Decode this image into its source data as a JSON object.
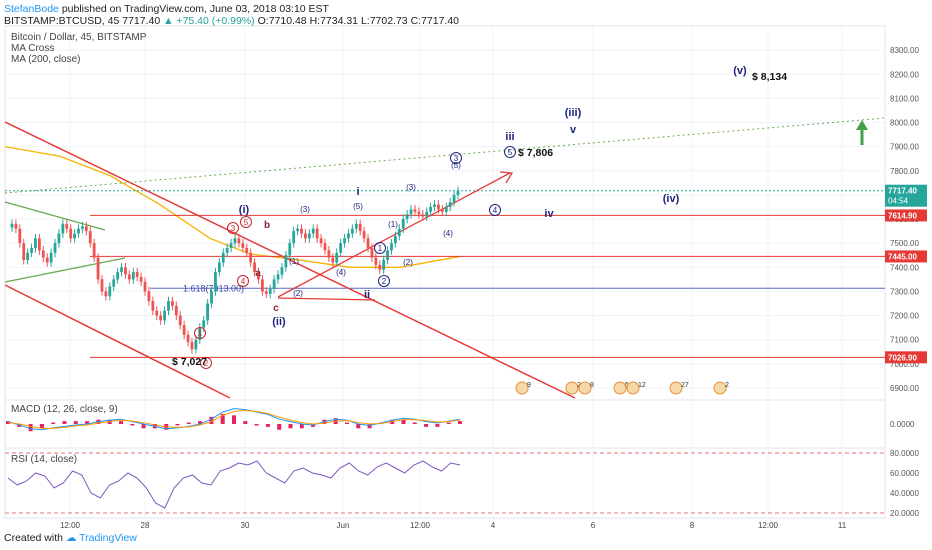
{
  "header": {
    "author": "StefanBode",
    "published_text": "published on TradingView.com, June 03, 2018 03:10 EST",
    "ticker": "BITSTAMP:BTCUSD, 45",
    "last": "7717.40",
    "change": "▲ +75.40 (+0.99%)",
    "ohlc": "O:7710.48 H:7734.31 L:7702.73 C:7717.40"
  },
  "legend": {
    "symbol": "Bitcoin / Dollar, 45, BITSTAMP",
    "ind1": "MA Cross",
    "ind2": "MA (200, close)"
  },
  "macd_label": "MACD (12, 26, close, 9)",
  "rsi_label": "RSI (14, close)",
  "footer": {
    "created_with": "Created with",
    "brand": "TradingView"
  },
  "colors": {
    "candle_up": "#26a69a",
    "candle_down": "#ef5350",
    "ma200": "#f4b400",
    "wave_label": "#1a237e",
    "red_line": "#e53935",
    "green_line": "#6aa84f",
    "price_tag": "#e53935",
    "last_tag": "#26a69a",
    "rsi": "#7e57c2",
    "macd_line": "#2196f3",
    "signal_line": "#ff9800",
    "hist": "#e91e63"
  },
  "chart_data": {
    "type": "candlestick",
    "title": "Bitcoin / Dollar, 45, BITSTAMP",
    "y_range": [
      6850,
      8400
    ],
    "y_ticks": [
      {
        "v": 6900,
        "t": "6900.00"
      },
      {
        "v": 7000,
        "t": "7000.00"
      },
      {
        "v": 7100,
        "t": "7100.00"
      },
      {
        "v": 7200,
        "t": "7200.00"
      },
      {
        "v": 7300,
        "t": "7300.00"
      },
      {
        "v": 7400,
        "t": "7400.00"
      },
      {
        "v": 7500,
        "t": "7500.00"
      },
      {
        "v": 7600,
        "t": "7600.00"
      },
      {
        "v": 7700,
        "t": "7700.00"
      },
      {
        "v": 7800,
        "t": "7800.00"
      },
      {
        "v": 7900,
        "t": "7900.00"
      },
      {
        "v": 8000,
        "t": "8000.00"
      },
      {
        "v": 8100,
        "t": "8100.00"
      },
      {
        "v": 8200,
        "t": "8200.00"
      },
      {
        "v": 8300,
        "t": "8300.00"
      }
    ],
    "x_labels": [
      "12:00",
      "28",
      "30",
      "Jun",
      "12:00",
      "4",
      "6",
      "8",
      "12:00",
      "11"
    ],
    "price_close": [
      7580,
      7560,
      7500,
      7430,
      7460,
      7480,
      7520,
      7470,
      7440,
      7420,
      7460,
      7500,
      7540,
      7580,
      7560,
      7520,
      7540,
      7560,
      7570,
      7550,
      7500,
      7440,
      7350,
      7300,
      7280,
      7320,
      7350,
      7380,
      7400,
      7370,
      7350,
      7380,
      7360,
      7340,
      7300,
      7260,
      7220,
      7200,
      7180,
      7220,
      7260,
      7240,
      7200,
      7160,
      7120,
      7090,
      7060,
      7100,
      7150,
      7180,
      7250,
      7300,
      7380,
      7420,
      7460,
      7480,
      7500,
      7520,
      7500,
      7480,
      7460,
      7420,
      7380,
      7350,
      7300,
      7290,
      7310,
      7350,
      7370,
      7400,
      7450,
      7500,
      7550,
      7560,
      7540,
      7520,
      7540,
      7560,
      7520,
      7500,
      7470,
      7440,
      7420,
      7460,
      7500,
      7520,
      7540,
      7560,
      7580,
      7550,
      7520,
      7480,
      7440,
      7410,
      7390,
      7430,
      7470,
      7500,
      7530,
      7560,
      7600,
      7620,
      7640,
      7630,
      7620,
      7610,
      7630,
      7650,
      7660,
      7640,
      7630,
      7650,
      7670,
      7700,
      7717
    ],
    "levels": [
      {
        "price": 7614.9,
        "label": "7614.90"
      },
      {
        "price": 7445.0,
        "label": "7445.00"
      },
      {
        "price": 7026.9,
        "label": "7026.90"
      }
    ],
    "last_price": {
      "price": 7717.4,
      "label": "7717.40",
      "countdown": "04:54"
    },
    "fib_label": "1.618(7313.00)",
    "price_annotations": [
      {
        "text": "$ 7,027",
        "price": 7026.9
      },
      {
        "text": "$ 7,806",
        "price": 7806
      },
      {
        "text": "$ 8,134",
        "price": 8134
      }
    ],
    "waves": [
      {
        "text": "(i)",
        "price": 7660,
        "style": "bold"
      },
      {
        "text": "(ii)",
        "price": 7210,
        "style": "bold"
      },
      {
        "text": "i",
        "price": 7700,
        "style": "bold"
      },
      {
        "text": "ii",
        "price": 7300,
        "style": "bold"
      },
      {
        "text": "iii",
        "price": 7875,
        "style": "bold"
      },
      {
        "text": "iv",
        "price": 7612,
        "style": "bold"
      },
      {
        "text": "(iii)",
        "price": 7960,
        "style": "bold"
      },
      {
        "text": "v",
        "price": 7880,
        "style": "bold"
      },
      {
        "text": "(iv)",
        "price": 7660,
        "style": "bold"
      },
      {
        "text": "(v)",
        "price": 8160,
        "style": "bold"
      },
      {
        "text": "a",
        "price": 7410,
        "style": "red"
      },
      {
        "text": "b",
        "price": 7560,
        "style": "red"
      },
      {
        "text": "c",
        "price": 7260,
        "style": "red"
      },
      {
        "text": "(1)",
        "price": 7410,
        "style": "small"
      },
      {
        "text": "(2)",
        "price": 7280,
        "style": "small"
      },
      {
        "text": "(3)",
        "price": 7630,
        "style": "small"
      },
      {
        "text": "(4)",
        "price": 7410,
        "style": "small"
      },
      {
        "text": "(5)",
        "price": 7640,
        "style": "small"
      },
      {
        "text": "(1)",
        "price": 7580,
        "style": "small"
      },
      {
        "text": "(2)",
        "price": 7440,
        "style": "small"
      },
      {
        "text": "(3)",
        "price": 7710,
        "style": "small"
      },
      {
        "text": "(4)",
        "price": 7540,
        "style": "small"
      },
      {
        "text": "(5)",
        "price": 7820,
        "style": "small"
      }
    ],
    "circled": [
      {
        "text": "3",
        "price": 7578
      },
      {
        "text": "5",
        "price": 7598
      },
      {
        "text": "4",
        "price": 7433
      },
      {
        "text": "1",
        "price": 7108
      },
      {
        "text": "2",
        "price": 7021
      },
      {
        "text": "1",
        "price": 7505
      },
      {
        "text": "2",
        "price": 7380
      },
      {
        "text": "3",
        "price": 7860
      },
      {
        "text": "4",
        "price": 7634
      },
      {
        "text": "5",
        "price": 7806
      }
    ],
    "event_counts": [
      "9",
      "2",
      "8",
      "5",
      "12",
      "27",
      "2"
    ],
    "macd": {
      "y_range": [
        -0.5,
        0.5
      ],
      "ticks": [
        {
          "v": 0,
          "t": "0.0000"
        }
      ],
      "macd_line": [
        0.05,
        -0.02,
        -0.1,
        -0.12,
        -0.08,
        -0.05,
        -0.02,
        0.0,
        0.05,
        0.08,
        0.1,
        0.05,
        0.0,
        -0.05,
        -0.1,
        -0.08,
        -0.05,
        0.0,
        0.1,
        0.25,
        0.32,
        0.3,
        0.25,
        0.2,
        0.1,
        0.05,
        0.0,
        -0.02,
        0.05,
        0.1,
        0.08,
        0.0,
        -0.03,
        0.02,
        0.08,
        0.12,
        0.1,
        0.05,
        0.02,
        0.06,
        0.1
      ],
      "signal": [
        0.03,
        0.0,
        -0.05,
        -0.09,
        -0.09,
        -0.07,
        -0.04,
        -0.02,
        0.02,
        0.05,
        0.08,
        0.06,
        0.03,
        -0.02,
        -0.06,
        -0.07,
        -0.06,
        -0.02,
        0.05,
        0.18,
        0.26,
        0.28,
        0.26,
        0.22,
        0.14,
        0.08,
        0.03,
        0.0,
        0.02,
        0.06,
        0.07,
        0.03,
        0.0,
        0.01,
        0.05,
        0.09,
        0.09,
        0.07,
        0.04,
        0.05,
        0.08
      ]
    },
    "rsi": {
      "y_range": [
        15,
        85
      ],
      "ticks": [
        {
          "v": 20,
          "t": "20.0000"
        },
        {
          "v": 40,
          "t": "40.0000"
        },
        {
          "v": 60,
          "t": "60.0000"
        },
        {
          "v": 80,
          "t": "80.0000"
        }
      ],
      "values": [
        55,
        48,
        52,
        60,
        57,
        45,
        50,
        62,
        58,
        40,
        35,
        48,
        52,
        60,
        55,
        45,
        30,
        25,
        45,
        55,
        58,
        50,
        48,
        62,
        65,
        70,
        68,
        72,
        60,
        55,
        50,
        62,
        65,
        60,
        58,
        55,
        65,
        70,
        62,
        58,
        66,
        70,
        65,
        60,
        68,
        72,
        66,
        62,
        70,
        68
      ]
    }
  }
}
